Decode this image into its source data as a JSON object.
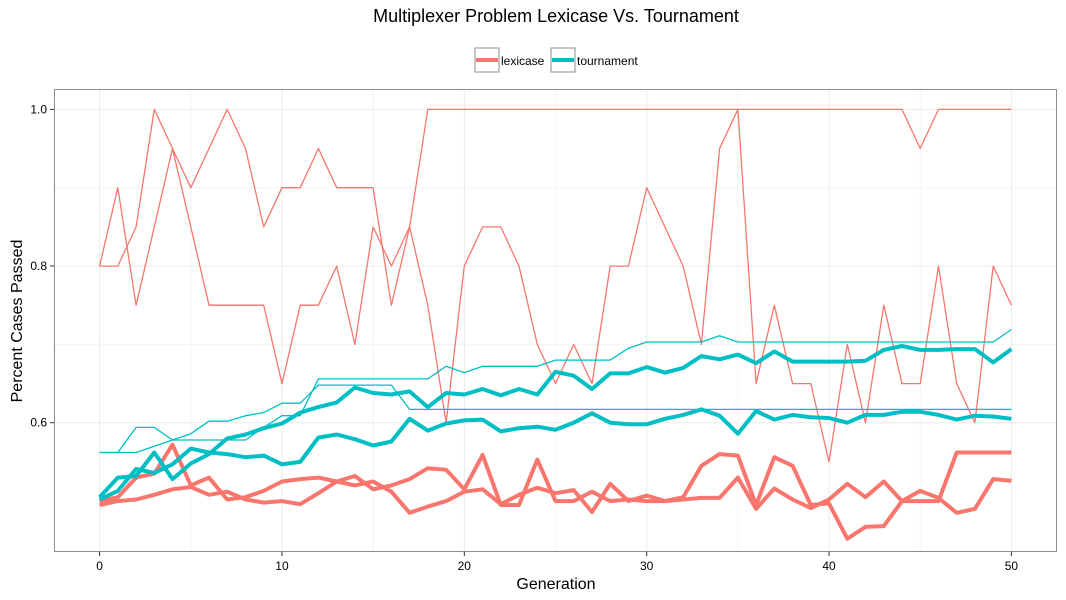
{
  "chart_data": {
    "type": "line",
    "title": "Multiplexer Problem Lexicase Vs. Tournament",
    "xlabel": "Generation",
    "ylabel": "Percent Cases Passed",
    "xlim": [
      -2.5,
      52.5
    ],
    "ylim": [
      0.435,
      1.026
    ],
    "x_ticks": [
      0,
      10,
      20,
      30,
      40,
      50
    ],
    "y_ticks": [
      "0.6",
      "0.8",
      "1.0"
    ],
    "y_tick_values": [
      0.6,
      0.8,
      1.0
    ],
    "grid": true,
    "legend": {
      "position": "top",
      "entries": [
        {
          "label": "lexicase",
          "color": "#F8766D"
        },
        {
          "label": "tournament",
          "color": "#00BFC4"
        }
      ]
    },
    "colors": {
      "lexicase": "#F8766D",
      "tournament": "#00BFC4",
      "panel_border": "#8c8c8c",
      "grid": "#ebebeb"
    },
    "x": [
      0,
      1,
      2,
      3,
      4,
      5,
      6,
      7,
      8,
      9,
      10,
      11,
      12,
      13,
      14,
      15,
      16,
      17,
      18,
      19,
      20,
      21,
      22,
      23,
      24,
      25,
      26,
      27,
      28,
      29,
      30,
      31,
      32,
      33,
      34,
      35,
      36,
      37,
      38,
      39,
      40,
      41,
      42,
      43,
      44,
      45,
      46,
      47,
      48,
      49,
      50
    ],
    "series": [
      {
        "group": "lexicase",
        "kind": "best",
        "values": [
          0.8,
          0.8,
          0.85,
          1.0,
          0.95,
          0.9,
          0.95,
          1.0,
          0.95,
          0.85,
          0.9,
          0.9,
          0.95,
          0.9,
          0.9,
          0.9,
          0.75,
          0.85,
          1.0,
          1.0,
          1.0,
          1.0,
          1.0,
          1.0,
          1.0,
          1.0,
          1.0,
          1.0,
          1.0,
          1.0,
          1.0,
          1.0,
          1.0,
          1.0,
          1.0,
          1.0,
          1.0,
          1.0,
          1.0,
          1.0,
          1.0,
          1.0,
          1.0,
          1.0,
          1.0,
          0.95,
          1.0,
          1.0,
          1.0,
          1.0,
          1.0
        ]
      },
      {
        "group": "lexicase",
        "kind": "best",
        "values": [
          0.8,
          0.9,
          0.75,
          0.85,
          0.95,
          0.85,
          0.75,
          0.75,
          0.75,
          0.75,
          0.65,
          0.75,
          0.75,
          0.8,
          0.7,
          0.85,
          0.8,
          0.85,
          0.75,
          0.6,
          0.8,
          0.85,
          0.85,
          0.8,
          0.7,
          0.65,
          0.7,
          0.65,
          0.8,
          0.8,
          0.9,
          0.85,
          0.8,
          0.7,
          0.95,
          1.0,
          0.65,
          0.75,
          0.65,
          0.65,
          0.55,
          0.7,
          0.6,
          0.75,
          0.65,
          0.65,
          0.8,
          0.65,
          0.6,
          0.8,
          0.75
        ]
      },
      {
        "group": "lexicase",
        "kind": "mean",
        "values": [
          0.5,
          0.505,
          0.53,
          0.535,
          0.572,
          0.52,
          0.53,
          0.502,
          0.505,
          0.513,
          0.525,
          0.528,
          0.53,
          0.525,
          0.532,
          0.515,
          0.52,
          0.528,
          0.542,
          0.54,
          0.515,
          0.559,
          0.495,
          0.495,
          0.553,
          0.5,
          0.5,
          0.512,
          0.5,
          0.502,
          0.5,
          0.5,
          0.505,
          0.545,
          0.56,
          0.558,
          0.495,
          0.556,
          0.545,
          0.495,
          0.497,
          0.452,
          0.467,
          0.468,
          0.5,
          0.5,
          0.5,
          0.562,
          0.562,
          0.562,
          0.562
        ]
      },
      {
        "group": "lexicase",
        "kind": "mean",
        "values": [
          0.495,
          0.5,
          0.502,
          0.508,
          0.515,
          0.518,
          0.508,
          0.512,
          0.502,
          0.498,
          0.5,
          0.496,
          0.51,
          0.525,
          0.52,
          0.525,
          0.512,
          0.485,
          0.493,
          0.5,
          0.512,
          0.515,
          0.496,
          0.508,
          0.517,
          0.51,
          0.514,
          0.486,
          0.522,
          0.5,
          0.507,
          0.5,
          0.502,
          0.504,
          0.504,
          0.53,
          0.49,
          0.516,
          0.502,
          0.491,
          0.502,
          0.522,
          0.505,
          0.525,
          0.5,
          0.513,
          0.504,
          0.485,
          0.49,
          0.528,
          0.526
        ]
      },
      {
        "group": "tournament",
        "kind": "best",
        "values": [
          0.562,
          0.562,
          0.594,
          0.594,
          0.578,
          0.578,
          0.578,
          0.578,
          0.578,
          0.594,
          0.609,
          0.609,
          0.656,
          0.656,
          0.656,
          0.656,
          0.656,
          0.656,
          0.656,
          0.672,
          0.664,
          0.672,
          0.672,
          0.672,
          0.672,
          0.68,
          0.68,
          0.68,
          0.68,
          0.695,
          0.703,
          0.703,
          0.703,
          0.703,
          0.711,
          0.703,
          0.703,
          0.703,
          0.703,
          0.703,
          0.703,
          0.703,
          0.703,
          0.703,
          0.703,
          0.703,
          0.703,
          0.703,
          0.703,
          0.703,
          0.719
        ]
      },
      {
        "group": "tournament",
        "kind": "best",
        "values": [
          0.562,
          0.562,
          0.562,
          0.57,
          0.578,
          0.586,
          0.602,
          0.602,
          0.609,
          0.613,
          0.625,
          0.625,
          0.648,
          0.648,
          0.648,
          0.648,
          0.648,
          0.617,
          0.617,
          0.617,
          0.617,
          0.617,
          0.617,
          0.617,
          0.617,
          0.617,
          0.617,
          0.617,
          0.617,
          0.617,
          0.617,
          0.617,
          0.617,
          0.617,
          0.617,
          0.617,
          0.617,
          0.617,
          0.617,
          0.617,
          0.617,
          0.617,
          0.617,
          0.617,
          0.617,
          0.617,
          0.617,
          0.617,
          0.617,
          0.617,
          0.617
        ]
      },
      {
        "group": "tournament",
        "kind": "mean",
        "values": [
          0.505,
          0.53,
          0.532,
          0.562,
          0.528,
          0.548,
          0.56,
          0.58,
          0.585,
          0.593,
          0.599,
          0.613,
          0.62,
          0.626,
          0.645,
          0.638,
          0.636,
          0.64,
          0.62,
          0.638,
          0.636,
          0.643,
          0.635,
          0.643,
          0.636,
          0.665,
          0.66,
          0.643,
          0.663,
          0.663,
          0.671,
          0.664,
          0.67,
          0.685,
          0.681,
          0.687,
          0.676,
          0.691,
          0.678,
          0.678,
          0.678,
          0.678,
          0.679,
          0.693,
          0.698,
          0.693,
          0.693,
          0.694,
          0.694,
          0.677,
          0.694
        ]
      },
      {
        "group": "tournament",
        "kind": "mean",
        "values": [
          0.502,
          0.513,
          0.541,
          0.536,
          0.547,
          0.567,
          0.562,
          0.56,
          0.556,
          0.558,
          0.547,
          0.55,
          0.581,
          0.585,
          0.579,
          0.571,
          0.576,
          0.605,
          0.59,
          0.599,
          0.603,
          0.604,
          0.589,
          0.593,
          0.595,
          0.591,
          0.6,
          0.612,
          0.6,
          0.598,
          0.598,
          0.605,
          0.61,
          0.617,
          0.609,
          0.586,
          0.615,
          0.604,
          0.61,
          0.607,
          0.606,
          0.6,
          0.61,
          0.61,
          0.614,
          0.614,
          0.61,
          0.604,
          0.609,
          0.608,
          0.605
        ]
      }
    ]
  }
}
